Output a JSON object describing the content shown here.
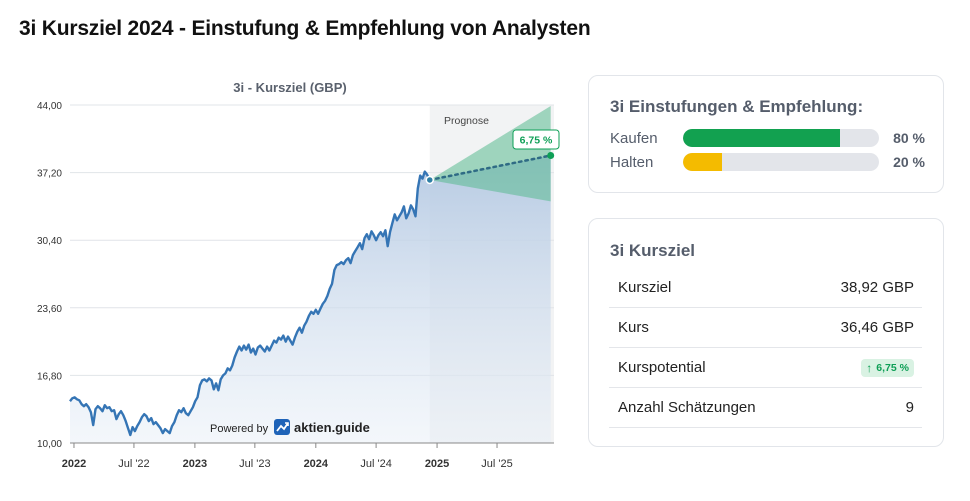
{
  "page": {
    "title": "3i Kursziel 2024 - Einstufung & Empfehlung von Analysten"
  },
  "chart_data": {
    "type": "line",
    "title": "3i - Kursziel (GBP)",
    "ylim": [
      10.0,
      44.0
    ],
    "y_ticks": [
      "10,00",
      "16,80",
      "23,60",
      "30,40",
      "37,20",
      "44,00"
    ],
    "y_tick_values": [
      10.0,
      16.8,
      23.6,
      30.4,
      37.2,
      44.0
    ],
    "x_ticks": [
      {
        "label": "2022",
        "date": "2022-01-01",
        "bold": true
      },
      {
        "label": "Jul '22",
        "date": "2022-07-01",
        "bold": false
      },
      {
        "label": "2023",
        "date": "2023-01-01",
        "bold": true
      },
      {
        "label": "Jul '23",
        "date": "2023-07-01",
        "bold": false
      },
      {
        "label": "2024",
        "date": "2024-01-01",
        "bold": true
      },
      {
        "label": "Jul '24",
        "date": "2024-07-01",
        "bold": false
      },
      {
        "label": "2025",
        "date": "2025-01-01",
        "bold": true
      },
      {
        "label": "Jul '25",
        "date": "2025-07-01",
        "bold": false
      }
    ],
    "x_range": [
      "2021-12-20",
      "2025-12-20"
    ],
    "forecast_start": "2024-12-10",
    "forecast_label": "Prognose",
    "powered_by": "Powered by",
    "brand": "aktien.guide",
    "series": [
      {
        "data": [
          [
            "2021-12-20",
            14.2
          ],
          [
            "2021-12-27",
            14.5
          ],
          [
            "2022-01-03",
            14.6
          ],
          [
            "2022-01-10",
            14.4
          ],
          [
            "2022-01-17",
            14.3
          ],
          [
            "2022-01-24",
            13.9
          ],
          [
            "2022-01-31",
            13.7
          ],
          [
            "2022-02-07",
            13.9
          ],
          [
            "2022-02-14",
            13.6
          ],
          [
            "2022-02-21",
            13.1
          ],
          [
            "2022-02-28",
            11.8
          ],
          [
            "2022-03-07",
            13.4
          ],
          [
            "2022-03-14",
            13.7
          ],
          [
            "2022-03-21",
            13.5
          ],
          [
            "2022-03-28",
            13.2
          ],
          [
            "2022-04-04",
            13.8
          ],
          [
            "2022-04-11",
            13.5
          ],
          [
            "2022-04-18",
            13.6
          ],
          [
            "2022-04-25",
            13.2
          ],
          [
            "2022-05-02",
            13.3
          ],
          [
            "2022-05-09",
            12.4
          ],
          [
            "2022-05-16",
            12.9
          ],
          [
            "2022-05-23",
            13.2
          ],
          [
            "2022-05-30",
            12.8
          ],
          [
            "2022-06-06",
            12.2
          ],
          [
            "2022-06-13",
            11.5
          ],
          [
            "2022-06-20",
            10.8
          ],
          [
            "2022-06-27",
            11.6
          ],
          [
            "2022-07-04",
            11.2
          ],
          [
            "2022-07-11",
            11.7
          ],
          [
            "2022-07-18",
            12.1
          ],
          [
            "2022-07-25",
            12.6
          ],
          [
            "2022-08-01",
            12.9
          ],
          [
            "2022-08-08",
            12.7
          ],
          [
            "2022-08-15",
            12.2
          ],
          [
            "2022-08-22",
            12.5
          ],
          [
            "2022-08-29",
            11.9
          ],
          [
            "2022-09-05",
            12.1
          ],
          [
            "2022-09-12",
            11.8
          ],
          [
            "2022-09-19",
            11.5
          ],
          [
            "2022-09-26",
            11.0
          ],
          [
            "2022-10-03",
            11.4
          ],
          [
            "2022-10-10",
            11.2
          ],
          [
            "2022-10-17",
            11.0
          ],
          [
            "2022-10-24",
            11.7
          ],
          [
            "2022-10-31",
            12.1
          ],
          [
            "2022-11-07",
            12.8
          ],
          [
            "2022-11-14",
            13.3
          ],
          [
            "2022-11-21",
            13.1
          ],
          [
            "2022-11-28",
            13.5
          ],
          [
            "2022-12-05",
            13.0
          ],
          [
            "2022-12-12",
            12.8
          ],
          [
            "2022-12-19",
            13.2
          ],
          [
            "2022-12-26",
            13.6
          ],
          [
            "2023-01-02",
            14.2
          ],
          [
            "2023-01-09",
            14.6
          ],
          [
            "2023-01-16",
            15.8
          ],
          [
            "2023-01-23",
            16.3
          ],
          [
            "2023-01-30",
            16.4
          ],
          [
            "2023-02-06",
            16.2
          ],
          [
            "2023-02-13",
            16.5
          ],
          [
            "2023-02-20",
            16.3
          ],
          [
            "2023-02-27",
            15.4
          ],
          [
            "2023-03-06",
            16.0
          ],
          [
            "2023-03-13",
            15.3
          ],
          [
            "2023-03-20",
            16.4
          ],
          [
            "2023-03-27",
            16.8
          ],
          [
            "2023-04-03",
            17.0
          ],
          [
            "2023-04-10",
            17.5
          ],
          [
            "2023-04-17",
            17.3
          ],
          [
            "2023-04-24",
            17.8
          ],
          [
            "2023-05-01",
            18.6
          ],
          [
            "2023-05-08",
            19.2
          ],
          [
            "2023-05-15",
            19.7
          ],
          [
            "2023-05-22",
            19.3
          ],
          [
            "2023-05-29",
            19.8
          ],
          [
            "2023-06-05",
            19.4
          ],
          [
            "2023-06-12",
            19.9
          ],
          [
            "2023-06-19",
            19.1
          ],
          [
            "2023-06-26",
            19.5
          ],
          [
            "2023-07-03",
            18.9
          ],
          [
            "2023-07-10",
            19.6
          ],
          [
            "2023-07-17",
            19.8
          ],
          [
            "2023-07-24",
            19.5
          ],
          [
            "2023-07-31",
            19.2
          ],
          [
            "2023-08-07",
            19.7
          ],
          [
            "2023-08-14",
            19.3
          ],
          [
            "2023-08-21",
            19.8
          ],
          [
            "2023-08-28",
            20.3
          ],
          [
            "2023-09-04",
            20.1
          ],
          [
            "2023-09-11",
            20.6
          ],
          [
            "2023-09-18",
            20.4
          ],
          [
            "2023-09-25",
            20.8
          ],
          [
            "2023-10-02",
            20.2
          ],
          [
            "2023-10-09",
            20.7
          ],
          [
            "2023-10-16",
            20.3
          ],
          [
            "2023-10-23",
            19.9
          ],
          [
            "2023-10-30",
            20.6
          ],
          [
            "2023-11-06",
            21.2
          ],
          [
            "2023-11-13",
            21.6
          ],
          [
            "2023-11-20",
            21.1
          ],
          [
            "2023-11-27",
            21.8
          ],
          [
            "2023-12-04",
            22.2
          ],
          [
            "2023-12-11",
            22.8
          ],
          [
            "2023-12-18",
            23.2
          ],
          [
            "2023-12-25",
            23.0
          ],
          [
            "2024-01-01",
            23.4
          ],
          [
            "2024-01-08",
            23.0
          ],
          [
            "2024-01-15",
            23.5
          ],
          [
            "2024-01-22",
            24.0
          ],
          [
            "2024-01-29",
            24.3
          ],
          [
            "2024-02-05",
            24.8
          ],
          [
            "2024-02-12",
            25.5
          ],
          [
            "2024-02-19",
            26.0
          ],
          [
            "2024-02-26",
            27.4
          ],
          [
            "2024-03-04",
            27.9
          ],
          [
            "2024-03-11",
            28.0
          ],
          [
            "2024-03-18",
            28.2
          ],
          [
            "2024-03-25",
            28.0
          ],
          [
            "2024-04-01",
            28.4
          ],
          [
            "2024-04-08",
            28.6
          ],
          [
            "2024-04-15",
            28.1
          ],
          [
            "2024-04-22",
            28.9
          ],
          [
            "2024-04-29",
            29.3
          ],
          [
            "2024-05-06",
            29.7
          ],
          [
            "2024-05-13",
            30.1
          ],
          [
            "2024-05-20",
            29.5
          ],
          [
            "2024-05-27",
            30.6
          ],
          [
            "2024-06-03",
            31.0
          ],
          [
            "2024-06-10",
            30.5
          ],
          [
            "2024-06-17",
            31.3
          ],
          [
            "2024-06-24",
            30.9
          ],
          [
            "2024-07-01",
            30.4
          ],
          [
            "2024-07-08",
            30.9
          ],
          [
            "2024-07-15",
            31.2
          ],
          [
            "2024-07-22",
            30.8
          ],
          [
            "2024-07-29",
            31.4
          ],
          [
            "2024-08-05",
            29.8
          ],
          [
            "2024-08-12",
            31.2
          ],
          [
            "2024-08-19",
            32.1
          ],
          [
            "2024-08-26",
            33.0
          ],
          [
            "2024-09-02",
            32.4
          ],
          [
            "2024-09-09",
            32.8
          ],
          [
            "2024-09-16",
            33.2
          ],
          [
            "2024-09-23",
            33.8
          ],
          [
            "2024-09-30",
            32.6
          ],
          [
            "2024-10-07",
            33.1
          ],
          [
            "2024-10-14",
            33.9
          ],
          [
            "2024-10-21",
            33.5
          ],
          [
            "2024-10-28",
            32.8
          ],
          [
            "2024-11-04",
            35.6
          ],
          [
            "2024-11-11",
            36.9
          ],
          [
            "2024-11-18",
            36.6
          ],
          [
            "2024-11-25",
            37.3
          ],
          [
            "2024-12-02",
            37.0
          ],
          [
            "2024-12-10",
            36.46
          ]
        ]
      }
    ],
    "forecast": {
      "start_value": 36.46,
      "target": 38.92,
      "high": 43.9,
      "low": 34.3,
      "end_date": "2025-12-10",
      "label": "6,75 %"
    },
    "colors": {
      "line": "#3575b5",
      "area_top": "#b7cbe4",
      "forecast_band": "#5aba8f",
      "forecast_line": "#2f6b85",
      "forecast_dot": "#0e9f56",
      "forecast_bg": "#f2f3f4",
      "grid": "#e1e4e8"
    }
  },
  "ratings": {
    "title": "3i Einstufungen & Empfehlung:",
    "items": [
      {
        "label": "Kaufen",
        "value": 80,
        "display": "80 %",
        "color": "#12a150"
      },
      {
        "label": "Halten",
        "value": 20,
        "display": "20 %",
        "color": "#f4bb00"
      }
    ]
  },
  "target": {
    "title": "3i Kursziel",
    "rows": [
      {
        "label": "Kursziel",
        "value": "38,92 GBP"
      },
      {
        "label": "Kurs",
        "value": "36,46 GBP"
      },
      {
        "label": "Kurspotential",
        "value": "6,75 %",
        "badge": true
      },
      {
        "label": "Anzahl Schätzungen",
        "value": "9"
      }
    ]
  }
}
